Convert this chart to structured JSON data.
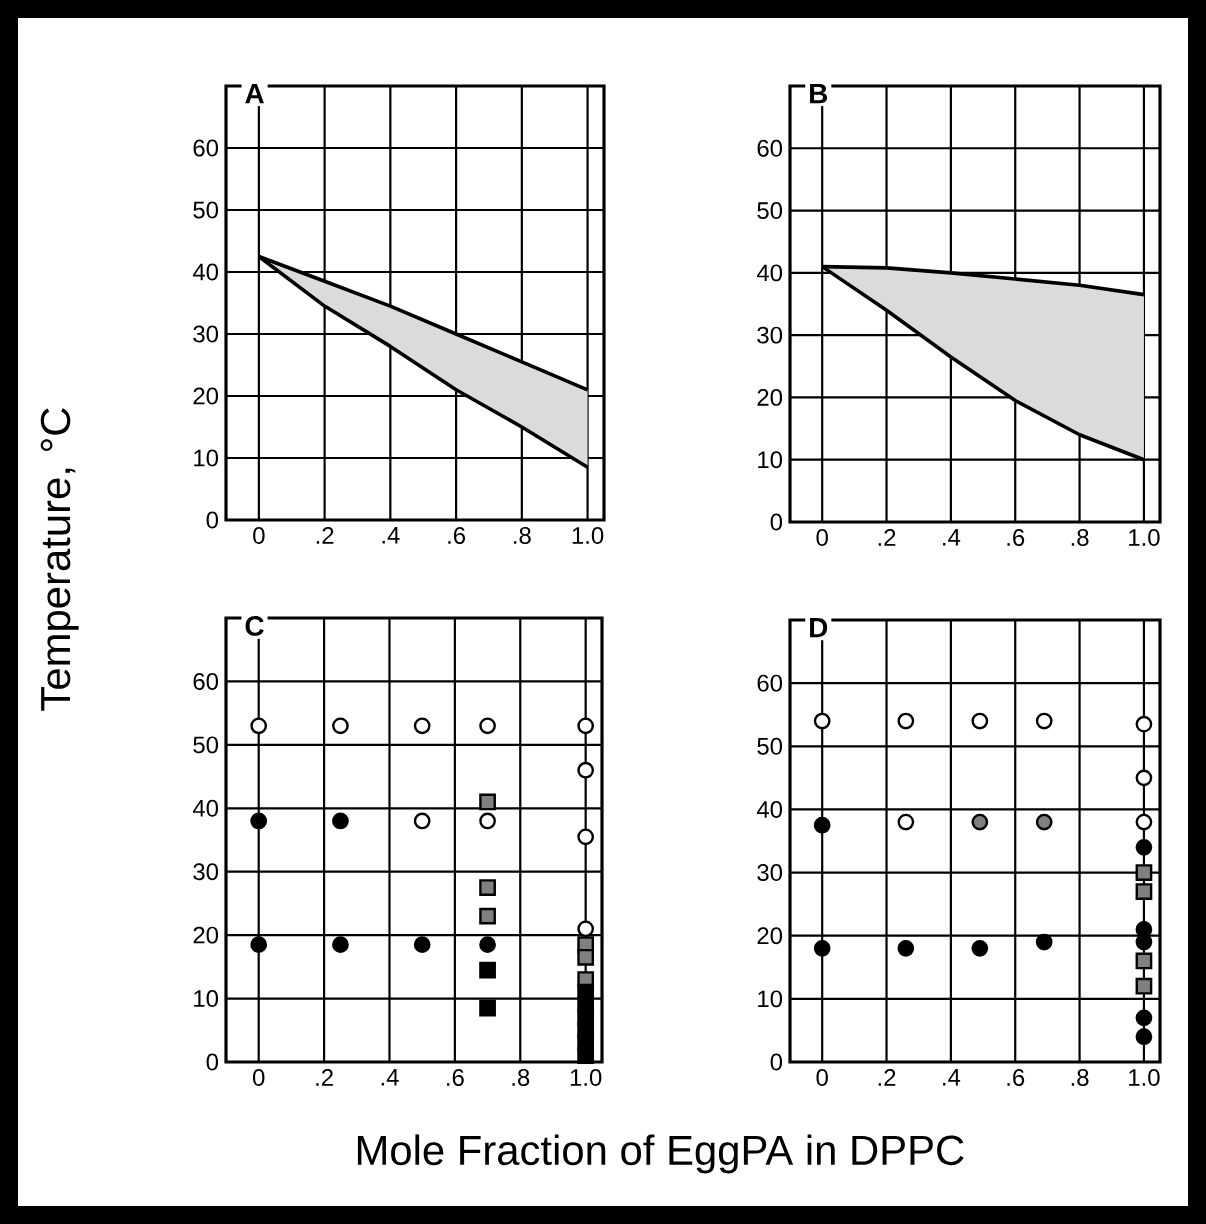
{
  "chart_data": [
    {
      "type": "line",
      "title": "A",
      "ylabel": "Temperature, °C",
      "xlim": [
        -0.1,
        1.05
      ],
      "ylim": [
        0,
        70
      ],
      "grid": true,
      "xticks": [
        0,
        {
          "value": 0.2,
          "label": ".2"
        },
        {
          "value": 0.4,
          "label": ".4"
        },
        {
          "value": 0.6,
          "label": ".6"
        },
        {
          "value": 0.8,
          "label": ".8"
        },
        {
          "value": 1.0,
          "label": "1.0"
        }
      ],
      "yticks": [
        0,
        10,
        20,
        30,
        40,
        50,
        60
      ],
      "x": [
        0,
        0.2,
        0.4,
        0.6,
        0.8,
        1.0
      ],
      "series": [
        {
          "color": "#000000",
          "values": [
            42.5,
            38.5,
            34.5,
            30,
            25.5,
            21
          ],
          "lower": [
            42.5,
            34.5,
            28,
            21,
            15,
            8.5
          ],
          "upper": [
            42.5,
            38.5,
            34.5,
            30,
            25.5,
            21
          ]
        },
        {
          "color": "#000000",
          "values": [
            42.5,
            34.5,
            28,
            21,
            15,
            8.5
          ]
        }
      ]
    },
    {
      "type": "line",
      "title": "B",
      "xlim": [
        -0.1,
        1.05
      ],
      "ylim": [
        0,
        70
      ],
      "grid": true,
      "xticks": [
        0,
        {
          "value": 0.2,
          "label": ".2"
        },
        {
          "value": 0.4,
          "label": ".4"
        },
        {
          "value": 0.6,
          "label": ".6"
        },
        {
          "value": 0.8,
          "label": ".8"
        },
        {
          "value": 1.0,
          "label": "1.0"
        }
      ],
      "yticks": [
        0,
        10,
        20,
        30,
        40,
        50,
        60
      ],
      "x": [
        0,
        0.2,
        0.4,
        0.6,
        0.8,
        1.0
      ],
      "series": [
        {
          "color": "#000000",
          "values": [
            41,
            40.8,
            40,
            39,
            38,
            36.5
          ],
          "lower": [
            41,
            34,
            26.5,
            19.5,
            14,
            10
          ],
          "upper": [
            41,
            40.8,
            40,
            39,
            38,
            36.5
          ]
        },
        {
          "color": "#000000",
          "values": [
            41,
            34,
            26.5,
            19.5,
            14,
            10
          ]
        }
      ]
    },
    {
      "type": "scatter",
      "title": "C",
      "xlabel": "Mole Fraction of EggPA in DPPC",
      "xlim": [
        -0.1,
        1.05
      ],
      "ylim": [
        0,
        70
      ],
      "grid": true,
      "xticks": [
        0,
        {
          "value": 0.2,
          "label": ".2"
        },
        {
          "value": 0.4,
          "label": ".4"
        },
        {
          "value": 0.6,
          "label": ".6"
        },
        {
          "value": 0.8,
          "label": ".8"
        },
        {
          "value": 1.0,
          "label": "1.0"
        }
      ],
      "yticks": [
        0,
        10,
        20,
        30,
        40,
        50,
        60
      ],
      "series": [
        {
          "marker": "circle",
          "color": "#ffffff",
          "x": [
            0,
            0.25,
            0.5,
            0.7,
            1.0,
            0.5,
            0.7,
            1.0,
            1.0,
            1.0
          ],
          "values": [
            53,
            53,
            53,
            53,
            53,
            38,
            38,
            46,
            35.5,
            21
          ]
        },
        {
          "marker": "circle",
          "color": "#000000",
          "x": [
            0,
            0.25,
            0,
            0.25,
            0.5,
            0.7
          ],
          "values": [
            38,
            38,
            18.5,
            18.5,
            18.5,
            18.5
          ]
        },
        {
          "marker": "square",
          "color": "#808080",
          "x": [
            0.7,
            0.7,
            0.7,
            1.0,
            1.0,
            1.0
          ],
          "values": [
            41,
            27.5,
            23,
            18.5,
            16.5,
            13
          ]
        },
        {
          "marker": "square",
          "color": "#000000",
          "x": [
            0.7,
            0.7,
            1.0,
            1.0,
            1.0,
            1.0,
            1.0,
            1.0
          ],
          "values": [
            14.5,
            8.5,
            11,
            9,
            7,
            5,
            3,
            1
          ]
        }
      ]
    },
    {
      "type": "scatter",
      "title": "D",
      "xlim": [
        -0.1,
        1.05
      ],
      "ylim": [
        0,
        70
      ],
      "grid": true,
      "xticks": [
        0,
        {
          "value": 0.2,
          "label": ".2"
        },
        {
          "value": 0.4,
          "label": ".4"
        },
        {
          "value": 0.6,
          "label": ".6"
        },
        {
          "value": 0.8,
          "label": ".8"
        },
        {
          "value": 1.0,
          "label": "1.0"
        }
      ],
      "yticks": [
        0,
        10,
        20,
        30,
        40,
        50,
        60
      ],
      "series": [
        {
          "marker": "circle",
          "color": "#ffffff",
          "x": [
            0,
            0.26,
            0.49,
            0.69,
            1.0,
            1.0,
            1.0,
            0.26
          ],
          "values": [
            54,
            54,
            54,
            54,
            53.5,
            45,
            38,
            38
          ]
        },
        {
          "marker": "circle",
          "color": "#808080",
          "x": [
            0.49,
            0.69
          ],
          "values": [
            38,
            38
          ]
        },
        {
          "marker": "circle",
          "color": "#000000",
          "x": [
            0,
            0,
            0.26,
            0.49,
            0.69,
            1.0,
            1.0,
            1.0,
            1.0,
            1.0
          ],
          "values": [
            37.5,
            18,
            18,
            18,
            19,
            34,
            21,
            19,
            7,
            4
          ]
        },
        {
          "marker": "square",
          "color": "#808080",
          "x": [
            1.0,
            1.0,
            1.0,
            1.0
          ],
          "values": [
            30,
            27,
            16,
            12
          ]
        }
      ]
    }
  ]
}
